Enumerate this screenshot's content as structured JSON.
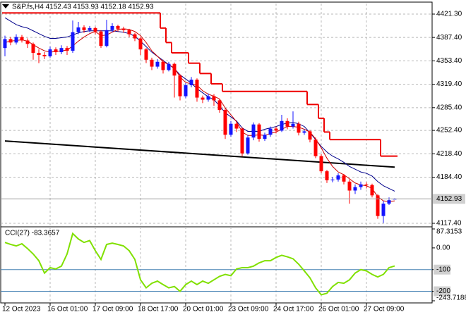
{
  "chart_data": [
    {
      "type": "candlestick",
      "title": "S&P.fs,H4 4152.43 4153.93 4152.18 4152.93",
      "categories": [
        "12 Oct 2023",
        null,
        null,
        null,
        null,
        null,
        null,
        null,
        "16 Oct 01:00",
        null,
        null,
        null,
        null,
        null,
        null,
        null,
        "17 Oct 09:00",
        null,
        null,
        null,
        null,
        null,
        null,
        null,
        "18 Oct 17:00",
        null,
        null,
        null,
        null,
        null,
        null,
        null,
        "20 Oct 01:00",
        null,
        null,
        null,
        null,
        null,
        null,
        null,
        "23 Oct 09:00",
        null,
        null,
        null,
        null,
        null,
        null,
        null,
        "24 Oct 17:00",
        null,
        null,
        null,
        null,
        null,
        null,
        null,
        "26 Oct 01:00",
        null,
        null,
        null,
        null,
        null,
        null,
        null,
        "27 Oct 09:00",
        null,
        null,
        null,
        null,
        null
      ],
      "open": [
        4372,
        4385,
        4380,
        4388,
        4383,
        4378,
        4365,
        4362,
        4360,
        4370,
        4366,
        4372,
        4368,
        4395,
        4402,
        4398,
        4401,
        4396,
        4375,
        4398,
        4404,
        4400,
        4398,
        4392,
        4386,
        4370,
        4355,
        4345,
        4352,
        4340,
        4349,
        4332,
        4302,
        4318,
        4326,
        4300,
        4297,
        4302,
        4296,
        4282,
        4246,
        4262,
        4255,
        4219,
        4242,
        4261,
        4240,
        4246,
        4255,
        4252,
        4266,
        4258,
        4262,
        4249,
        4251,
        4239,
        4215,
        4193,
        4180,
        4181,
        4187,
        4178,
        4165,
        4170,
        4174,
        4173,
        4158,
        4128,
        4146,
        4152.43
      ],
      "high": [
        4390,
        4388,
        4392,
        4391,
        4386,
        4380,
        4370,
        4366,
        4374,
        4373,
        4376,
        4375,
        4412,
        4410,
        4405,
        4404,
        4403,
        4398,
        4413,
        4408,
        4406,
        4403,
        4400,
        4394,
        4388,
        4372,
        4358,
        4356,
        4355,
        4352,
        4351,
        4334,
        4321,
        4330,
        4328,
        4303,
        4306,
        4305,
        4298,
        4285,
        4266,
        4264,
        4257,
        4246,
        4264,
        4263,
        4249,
        4258,
        4258,
        4275,
        4270,
        4280,
        4265,
        4254,
        4253,
        4242,
        4218,
        4195,
        4185,
        4190,
        4189,
        4181,
        4174,
        4178,
        4177,
        4175,
        4160,
        4150,
        4155,
        4153.93
      ],
      "low": [
        4360,
        4376,
        4377,
        4380,
        4372,
        4355,
        4350,
        4356,
        4358,
        4362,
        4363,
        4362,
        4365,
        4392,
        4394,
        4395,
        4392,
        4372,
        4373,
        4395,
        4396,
        4394,
        4388,
        4382,
        4362,
        4350,
        4340,
        4342,
        4335,
        4338,
        4300,
        4296,
        4299,
        4315,
        4294,
        4292,
        4294,
        4288,
        4278,
        4240,
        4243,
        4250,
        4215,
        4217,
        4238,
        4236,
        4237,
        4243,
        4248,
        4250,
        4254,
        4255,
        4245,
        4246,
        4235,
        4212,
        4190,
        4176,
        4177,
        4178,
        4174,
        4146,
        4160,
        4166,
        4168,
        4155,
        4124,
        4118,
        4144,
        4152.18
      ],
      "close": [
        4385,
        4380,
        4388,
        4383,
        4378,
        4365,
        4362,
        4360,
        4370,
        4366,
        4372,
        4368,
        4395,
        4402,
        4398,
        4401,
        4396,
        4375,
        4398,
        4404,
        4400,
        4398,
        4392,
        4386,
        4370,
        4355,
        4345,
        4352,
        4340,
        4349,
        4332,
        4302,
        4318,
        4326,
        4300,
        4297,
        4302,
        4296,
        4282,
        4246,
        4262,
        4255,
        4219,
        4242,
        4261,
        4240,
        4246,
        4255,
        4252,
        4266,
        4258,
        4262,
        4249,
        4251,
        4239,
        4215,
        4193,
        4180,
        4181,
        4187,
        4178,
        4165,
        4170,
        4174,
        4173,
        4158,
        4128,
        4146,
        4151,
        4152.93
      ],
      "up_color": "#1414ff",
      "down_color": "#ff0000",
      "series": [
        {
          "color": "#00008b",
          "values": [
            4416,
            4411,
            4406,
            4403,
            4401,
            4397,
            4393,
            4389,
            4386,
            4386,
            4387,
            4388,
            4391,
            4394,
            4396,
            4397,
            4397,
            4397,
            4397,
            4397,
            4396,
            4395,
            4393,
            4389,
            4382,
            4374,
            4366,
            4360,
            4354,
            4348,
            4342,
            4333,
            4327,
            4321,
            4313,
            4307,
            4301,
            4297,
            4288,
            4278,
            4272,
            4266,
            4256,
            4251,
            4251,
            4251,
            4254,
            4256,
            4258,
            4261,
            4263,
            4264,
            4262,
            4258,
            4249,
            4239,
            4229,
            4221,
            4215,
            4211,
            4206,
            4200,
            4196,
            4192,
            4190,
            4186,
            4178,
            4172,
            4168,
            4164
          ]
        },
        {
          "color": "#cc0000",
          "values": [
            4380,
            4382,
            4383,
            4384,
            4382,
            4377,
            4372,
            4368,
            4366,
            4367,
            4368,
            4369,
            4375,
            4382,
            4388,
            4393,
            4396,
            4390,
            4391,
            4395,
            4399,
            4400,
            4399,
            4396,
            4390,
            4380,
            4368,
            4360,
            4352,
            4348,
            4343,
            4330,
            4322,
            4320,
            4318,
            4310,
            4305,
            4302,
            4298,
            4285,
            4275,
            4265,
            4250,
            4245,
            4245,
            4246,
            4245,
            4248,
            4250,
            4254,
            4258,
            4258,
            4257,
            4254,
            4250,
            4240,
            4227,
            4212,
            4200,
            4192,
            4188,
            4182,
            4176,
            4173,
            4172,
            4168,
            4156,
            4150,
            4149,
            4150
          ]
        },
        {
          "color": "#ee0000",
          "step": true,
          "values": [
            4423,
            4423,
            4423,
            4423,
            4423,
            4423,
            4423,
            4423,
            4423,
            4423,
            4423,
            4423,
            4423,
            4423,
            4423,
            4423,
            4423,
            4423,
            4423,
            4423,
            4423,
            4423,
            4423,
            4423,
            4423,
            4423,
            4423,
            4423,
            4401,
            4380,
            4365,
            4365,
            4365,
            4350,
            4350,
            4335,
            4335,
            4320,
            4320,
            4309,
            4309,
            4309,
            4309,
            4309,
            4309,
            4309,
            4309,
            4309,
            4309,
            4309,
            4309,
            4309,
            4309,
            4309,
            4290,
            4290,
            4270,
            4250,
            4239,
            4239,
            4239,
            4239,
            4239,
            4239,
            4239,
            4239,
            4239,
            4215,
            4215,
            4215
          ]
        }
      ],
      "trendline": {
        "color": "#000000",
        "values": [
          4237,
          4199
        ]
      },
      "current_price": 4152.93,
      "ylim": [
        4112.3,
        4436.65
      ],
      "yticks": [
        {
          "value": 4421.3,
          "label": "4421.30"
        },
        {
          "value": 4387.4,
          "label": "4387.40"
        },
        {
          "value": 4353.4,
          "label": "4353.40"
        },
        {
          "value": 4319.4,
          "label": "4319.40"
        },
        {
          "value": 4285.4,
          "label": "4285.40"
        },
        {
          "value": 4252.4,
          "label": "4252.40"
        },
        {
          "value": 4218.4,
          "label": "4218.40"
        },
        {
          "value": 4184.4,
          "label": "4184.40"
        },
        {
          "value": 4117.4,
          "label": "4117.40"
        }
      ],
      "grid": true
    },
    {
      "type": "line",
      "title": "CCI(27) -83.3657",
      "color": "#80e000",
      "values": [
        25,
        16,
        9,
        19,
        -3,
        -28,
        -59,
        -116,
        -91,
        -97,
        -84,
        -28,
        66,
        41,
        25,
        34,
        -13,
        -53,
        16,
        22,
        16,
        9,
        -13,
        -53,
        -147,
        -184,
        -163,
        -153,
        -169,
        -184,
        -178,
        -200,
        -169,
        -153,
        -169,
        -153,
        -163,
        -147,
        -131,
        -122,
        -128,
        -97,
        -91,
        -91,
        -84,
        -69,
        -59,
        -59,
        -44,
        -34,
        -41,
        -50,
        -75,
        -106,
        -138,
        -184,
        -216,
        -209,
        -178,
        -159,
        -163,
        -147,
        -116,
        -100,
        -106,
        -122,
        -134,
        -122,
        -91,
        -83.3657
      ],
      "ylim": [
        -243.7188,
        87.3153
      ],
      "yticks": [
        87.3153,
        {
          "value": 0,
          "label": "0.00"
        },
        -100,
        -200,
        -243.7188
      ],
      "levels": [
        -100,
        -200
      ],
      "level_color": "#4682b4"
    }
  ]
}
